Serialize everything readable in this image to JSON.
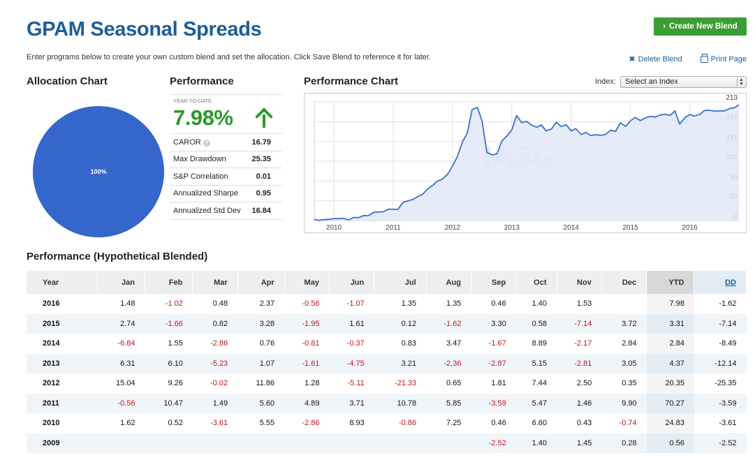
{
  "header": {
    "title": "GPAM Seasonal Spreads",
    "create_button": "Create New Blend",
    "intro": "Enter programs below to create your own custom blend and set the allocation. Click Save Blend to reference it for later.",
    "delete_link": "Delete Blend",
    "print_link": "Print Page"
  },
  "allocation": {
    "heading": "Allocation Chart",
    "slice_label": "100%",
    "color": "#3566cc"
  },
  "performance": {
    "heading": "Performance",
    "ytd_label": "YEAR-TO-DATE",
    "ytd_value": "7.98%",
    "stats": [
      {
        "label": "CAROR",
        "value": "16.79"
      },
      {
        "label": "Max Drawdown",
        "value": "25.35"
      },
      {
        "label": "S&P Correlation",
        "value": "0.01"
      },
      {
        "label": "Annualized Sharpe",
        "value": "0.95"
      },
      {
        "label": "Annualized Std Dev",
        "value": "16.84"
      }
    ]
  },
  "perf_chart": {
    "heading": "Performance Chart",
    "index_label": "Index:",
    "index_select": "Select an Index",
    "watermark": "IASG"
  },
  "chart_data": {
    "type": "area",
    "title": "",
    "xlabel": "",
    "ylabel": "",
    "x_ticks": [
      "2010",
      "2011",
      "2012",
      "2013",
      "2014",
      "2015",
      "2016"
    ],
    "y_ticks": [
      "213",
      "177",
      "141",
      "105",
      "69",
      "33",
      "-3"
    ],
    "ylim": [
      -3,
      213
    ],
    "x_range": [
      2009.67,
      2016.83
    ],
    "grid": true,
    "color": "#3a6fd0",
    "series": [
      {
        "x": [
          2009.67,
          2009.75,
          2009.83,
          2009.92,
          2010.0,
          2010.08,
          2010.17,
          2010.25,
          2010.33,
          2010.42,
          2010.5,
          2010.58,
          2010.67,
          2010.75,
          2010.83,
          2010.92,
          2011.0,
          2011.08,
          2011.17,
          2011.25,
          2011.33,
          2011.42,
          2011.5,
          2011.58,
          2011.67,
          2011.75,
          2011.83,
          2011.92,
          2012.0,
          2012.08,
          2012.17,
          2012.25,
          2012.33,
          2012.42,
          2012.5,
          2012.58,
          2012.67,
          2012.75,
          2012.83,
          2012.92,
          2013.0,
          2013.08,
          2013.17,
          2013.25,
          2013.33,
          2013.42,
          2013.5,
          2013.58,
          2013.67,
          2013.75,
          2013.83,
          2013.92,
          2014.0,
          2014.08,
          2014.17,
          2014.25,
          2014.33,
          2014.42,
          2014.5,
          2014.58,
          2014.67,
          2014.75,
          2014.83,
          2014.92,
          2015.0,
          2015.08,
          2015.17,
          2015.25,
          2015.33,
          2015.42,
          2015.5,
          2015.58,
          2015.67,
          2015.75,
          2015.83,
          2015.92,
          2016.0,
          2016.08,
          2016.17,
          2016.25,
          2016.33,
          2016.42,
          2016.5,
          2016.58,
          2016.67,
          2016.75,
          2016.83
        ],
        "y": [
          -1.0,
          -2.5,
          -1.2,
          -0.7,
          0.5,
          0.6,
          0.9,
          -1.7,
          2.6,
          2.5,
          6.2,
          5.9,
          11.9,
          12.6,
          13.0,
          17.8,
          17.6,
          17.4,
          30.6,
          32.9,
          35.5,
          40.8,
          45.0,
          54.6,
          61.3,
          69.2,
          72.3,
          81.8,
          96.4,
          112.8,
          140.7,
          156.3,
          198.9,
          202.9,
          178.0,
          120.9,
          116.5,
          118.5,
          141.3,
          151.4,
          162.0,
          188.1,
          175.2,
          177.5,
          171.0,
          167.0,
          171.0,
          160.3,
          163.9,
          176.3,
          168.3,
          171.2,
          160.2,
          164.3,
          153.7,
          157.5,
          151.9,
          153.4,
          152.0,
          153.8,
          161.7,
          159.3,
          174.8,
          168.5,
          178.4,
          184.8,
          179.1,
          183.6,
          186.7,
          185.6,
          189.1,
          190.6,
          188.5,
          196.8,
          172.6,
          184.4,
          190.0,
          187.3,
          190.2,
          197.4,
          197.9,
          196.3,
          196.5,
          196.8,
          200.8,
          202.2,
          207.5
        ]
      }
    ]
  },
  "table": {
    "heading": "Performance (Hypothetical Blended)",
    "columns": [
      "Year",
      "Jan",
      "Feb",
      "Mar",
      "Apr",
      "May",
      "Jun",
      "Jul",
      "Aug",
      "Sep",
      "Oct",
      "Nov",
      "Dec",
      "YTD",
      "DD"
    ],
    "rows": [
      [
        "2016",
        "1.48",
        "-1.02",
        "0.48",
        "2.37",
        "-0.56",
        "-1.07",
        "1.35",
        "1.35",
        "0.46",
        "1.40",
        "1.53",
        "",
        "7.98",
        "-1.62"
      ],
      [
        "2015",
        "2.74",
        "-1.66",
        "0.82",
        "3.28",
        "-1.95",
        "1.61",
        "0.12",
        "-1.62",
        "3.30",
        "0.58",
        "-7.14",
        "3.72",
        "3.31",
        "-7.14"
      ],
      [
        "2014",
        "-6.84",
        "1.55",
        "-2.86",
        "0.76",
        "-0.81",
        "-0.37",
        "0.83",
        "3.47",
        "-1.67",
        "8.89",
        "-2.17",
        "2.84",
        "2.84",
        "-8.49"
      ],
      [
        "2013",
        "6.31",
        "6.10",
        "-5.23",
        "1.07",
        "-1.61",
        "-4.75",
        "3.21",
        "-2.36",
        "-2.87",
        "5.15",
        "-2.81",
        "3.05",
        "4.37",
        "-12.14"
      ],
      [
        "2012",
        "15.04",
        "9.26",
        "-0.02",
        "11.86",
        "1.28",
        "-5.11",
        "-21.33",
        "0.65",
        "1.81",
        "7.44",
        "2.50",
        "0.35",
        "20.35",
        "-25.35"
      ],
      [
        "2011",
        "-0.56",
        "10.47",
        "1.49",
        "5.60",
        "4.89",
        "3.71",
        "10.78",
        "5.85",
        "-3.59",
        "5.47",
        "1.46",
        "9.90",
        "70.27",
        "-3.59"
      ],
      [
        "2010",
        "1.62",
        "0.52",
        "-3.61",
        "5.55",
        "-2.86",
        "8.93",
        "-0.86",
        "7.25",
        "0.46",
        "6.60",
        "0.43",
        "-0.74",
        "24.83",
        "-3.61"
      ],
      [
        "2009",
        "",
        "",
        "",
        "",
        "",
        "",
        "",
        "",
        "-2.52",
        "1.40",
        "1.45",
        "0.28",
        "0.56",
        "-2.52"
      ]
    ]
  }
}
